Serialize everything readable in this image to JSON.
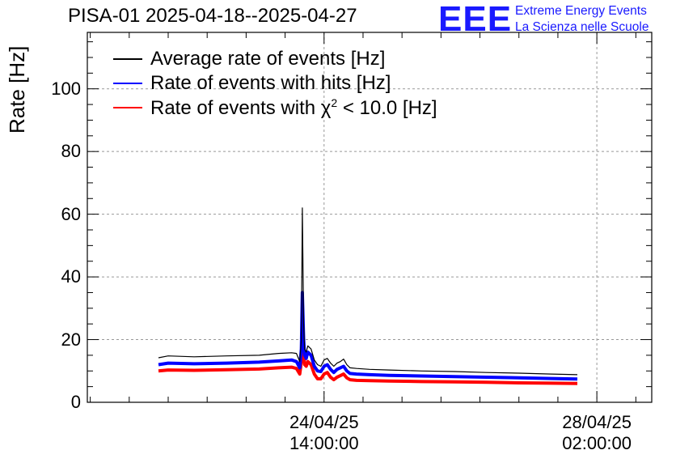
{
  "chart_data": {
    "type": "line",
    "title": "PISA-01 2025-04-18--2025-04-27",
    "ylabel": "Rate [Hz]",
    "xlabel": "",
    "ylim": [
      0,
      118
    ],
    "xlim_hours": [
      -72.9,
      100.9
    ],
    "x_unit": "hours since 24/04/25 14:00:00",
    "yticks": [
      0,
      20,
      40,
      60,
      80,
      100
    ],
    "xticks": [
      {
        "hours": 0,
        "date": "24/04/25",
        "time": "14:00:00"
      },
      {
        "hours": 84,
        "date": "28/04/25",
        "time": "02:00:00"
      }
    ],
    "grid": true,
    "legend_position": "top-left",
    "series": [
      {
        "name": "Average rate of events [Hz]",
        "color": "#000000",
        "x": [
          -51,
          -48,
          -40,
          -30,
          -20,
          -14,
          -10,
          -8.5,
          -7.5,
          -7,
          -6.7,
          -6.3,
          -6,
          -5.5,
          -5,
          -4,
          -3,
          -2,
          -1,
          0,
          1,
          2,
          3,
          4,
          5,
          6,
          7,
          8,
          10,
          14,
          20,
          30,
          40,
          50,
          60,
          70,
          78
        ],
        "values": [
          14.2,
          14.8,
          14.5,
          14.8,
          15.0,
          15.6,
          15.8,
          15.6,
          13.0,
          20.0,
          62.0,
          25.0,
          17.0,
          16.0,
          18.0,
          17.0,
          13.5,
          12.0,
          11.5,
          13.5,
          14.0,
          12.5,
          11.5,
          12.5,
          13.0,
          13.8,
          12.0,
          11.0,
          10.8,
          10.5,
          10.3,
          10.0,
          9.8,
          9.5,
          9.3,
          9.0,
          8.8
        ]
      },
      {
        "name": "Rate of events with hits [Hz]",
        "color": "#0000ff",
        "x": [
          -51,
          -48,
          -40,
          -30,
          -20,
          -14,
          -10,
          -8.5,
          -7.5,
          -7,
          -6.7,
          -6.3,
          -6,
          -5.5,
          -5,
          -4,
          -3,
          -2,
          -1,
          0,
          1,
          2,
          3,
          4,
          5,
          6,
          7,
          8,
          10,
          14,
          20,
          30,
          40,
          50,
          60,
          70,
          78
        ],
        "values": [
          12.0,
          12.5,
          12.3,
          12.5,
          12.8,
          13.2,
          13.5,
          13.0,
          11.0,
          17.0,
          35.0,
          20.0,
          15.0,
          14.0,
          16.0,
          15.0,
          11.5,
          10.0,
          9.8,
          11.5,
          12.0,
          10.5,
          9.5,
          10.5,
          11.0,
          11.5,
          10.0,
          9.2,
          9.0,
          8.8,
          8.6,
          8.4,
          8.2,
          8.0,
          7.8,
          7.6,
          7.4
        ]
      },
      {
        "name": "Rate of events with χ² < 10.0 [Hz]",
        "color": "#ff0000",
        "x": [
          -51,
          -48,
          -40,
          -30,
          -20,
          -14,
          -10,
          -8.5,
          -7.5,
          -7,
          -6.7,
          -6.3,
          -6,
          -5.5,
          -5,
          -4,
          -3,
          -2,
          -1,
          0,
          1,
          2,
          3,
          4,
          5,
          6,
          7,
          8,
          10,
          14,
          20,
          30,
          40,
          50,
          60,
          70,
          78
        ],
        "values": [
          10.0,
          10.3,
          10.2,
          10.4,
          10.6,
          11.0,
          11.2,
          10.8,
          9.0,
          13.0,
          22.0,
          16.0,
          12.0,
          11.5,
          13.0,
          12.0,
          9.0,
          7.5,
          7.5,
          9.0,
          9.5,
          8.0,
          7.2,
          8.0,
          8.5,
          9.0,
          7.8,
          7.2,
          7.0,
          6.9,
          6.8,
          6.6,
          6.5,
          6.4,
          6.2,
          6.1,
          6.0
        ]
      }
    ],
    "legend_chi_prefix": "Rate of events with χ",
    "legend_chi_sup": "2",
    "legend_chi_suffix": " < 10.0 [Hz]"
  },
  "logo": {
    "mark": "EEE",
    "line1": "Extreme Energy Events",
    "line2": "La Scienza nelle Scuole"
  }
}
